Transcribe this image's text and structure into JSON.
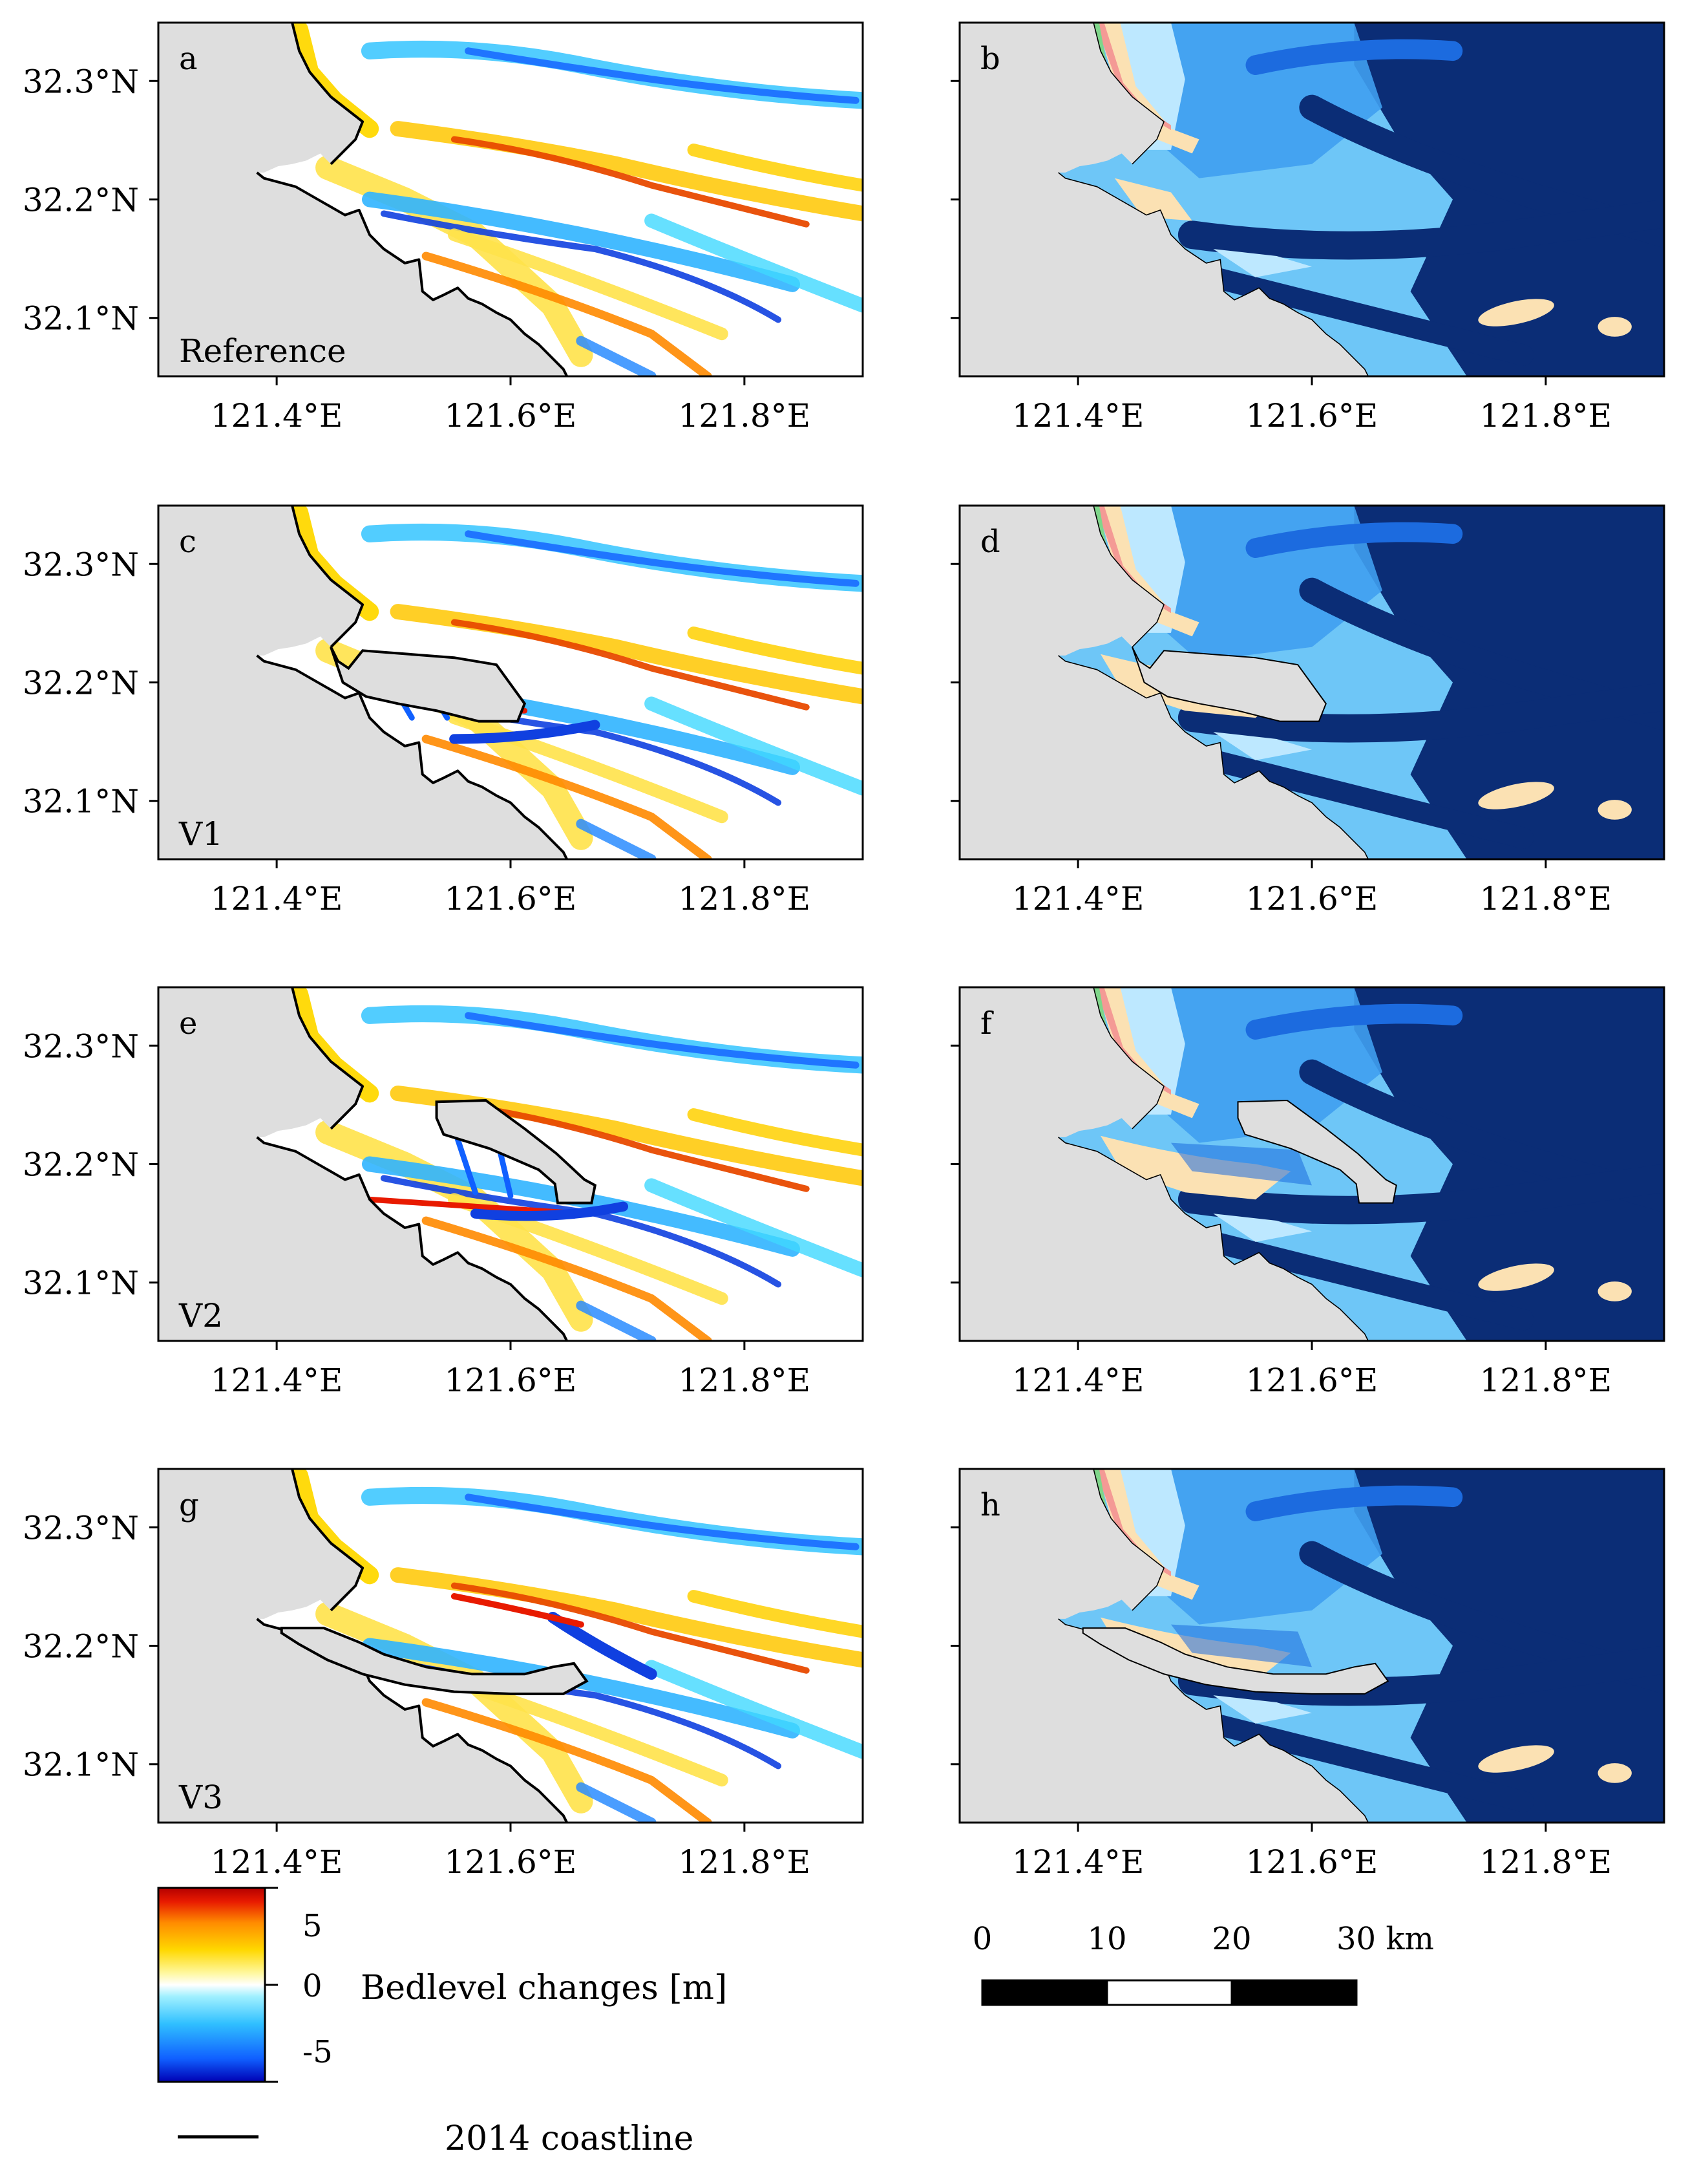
{
  "panels": [
    {
      "letter": "a",
      "map": "change",
      "scenario": "Reference",
      "lat_ticks": [
        "32.3°N",
        "32.2°N",
        "32.1°N"
      ],
      "lon_ticks": [
        "121.4°E",
        "121.6°E",
        "121.8°E"
      ]
    },
    {
      "letter": "b",
      "map": "depth",
      "scenario": "",
      "lat_ticks": [],
      "lon_ticks": [
        "121.4°E",
        "121.6°E",
        "121.8°E"
      ]
    },
    {
      "letter": "c",
      "map": "change",
      "scenario": "V1",
      "lat_ticks": [
        "32.3°N",
        "32.2°N",
        "32.1°N"
      ],
      "lon_ticks": [
        "121.4°E",
        "121.6°E",
        "121.8°E"
      ]
    },
    {
      "letter": "d",
      "map": "depth",
      "scenario": "",
      "lat_ticks": [],
      "lon_ticks": [
        "121.4°E",
        "121.6°E",
        "121.8°E"
      ]
    },
    {
      "letter": "e",
      "map": "change",
      "scenario": "V2",
      "lat_ticks": [
        "32.3°N",
        "32.2°N",
        "32.1°N"
      ],
      "lon_ticks": [
        "121.4°E",
        "121.6°E",
        "121.8°E"
      ]
    },
    {
      "letter": "f",
      "map": "depth",
      "scenario": "",
      "lat_ticks": [],
      "lon_ticks": [
        "121.4°E",
        "121.6°E",
        "121.8°E"
      ]
    },
    {
      "letter": "g",
      "map": "change",
      "scenario": "V3",
      "lat_ticks": [
        "32.3°N",
        "32.2°N",
        "32.1°N"
      ],
      "lon_ticks": [
        "121.4°E",
        "121.6°E",
        "121.8°E"
      ]
    },
    {
      "letter": "h",
      "map": "depth",
      "scenario": "",
      "lat_ticks": [],
      "lon_ticks": [
        "121.4°E",
        "121.6°E",
        "121.8°E"
      ]
    }
  ],
  "colorbar": {
    "label": "Bedlevel changes [m]",
    "ticks": [
      "5",
      "0",
      "-5"
    ],
    "range": [
      -5,
      5
    ],
    "colors": [
      "#0000b4",
      "#1060ff",
      "#30c0ff",
      "#a0f0ff",
      "#ffffff",
      "#fff8a0",
      "#ffd800",
      "#ff8c00",
      "#e81a00",
      "#b40000"
    ]
  },
  "scalebar": {
    "labels": [
      "0",
      "10",
      "20",
      "30 km"
    ],
    "segment_km": 10,
    "fills": [
      "#000000",
      "#ffffff",
      "#000000"
    ]
  },
  "legend": {
    "coastline_label": "2014 coastline"
  },
  "colors": {
    "land": "#dedede",
    "depth_palette": [
      "#7fd68a",
      "#f49a95",
      "#fbe1b3",
      "#bde8ff",
      "#6ec6f7",
      "#3f9ef0",
      "#1c6bdf",
      "#0b2d76"
    ]
  }
}
